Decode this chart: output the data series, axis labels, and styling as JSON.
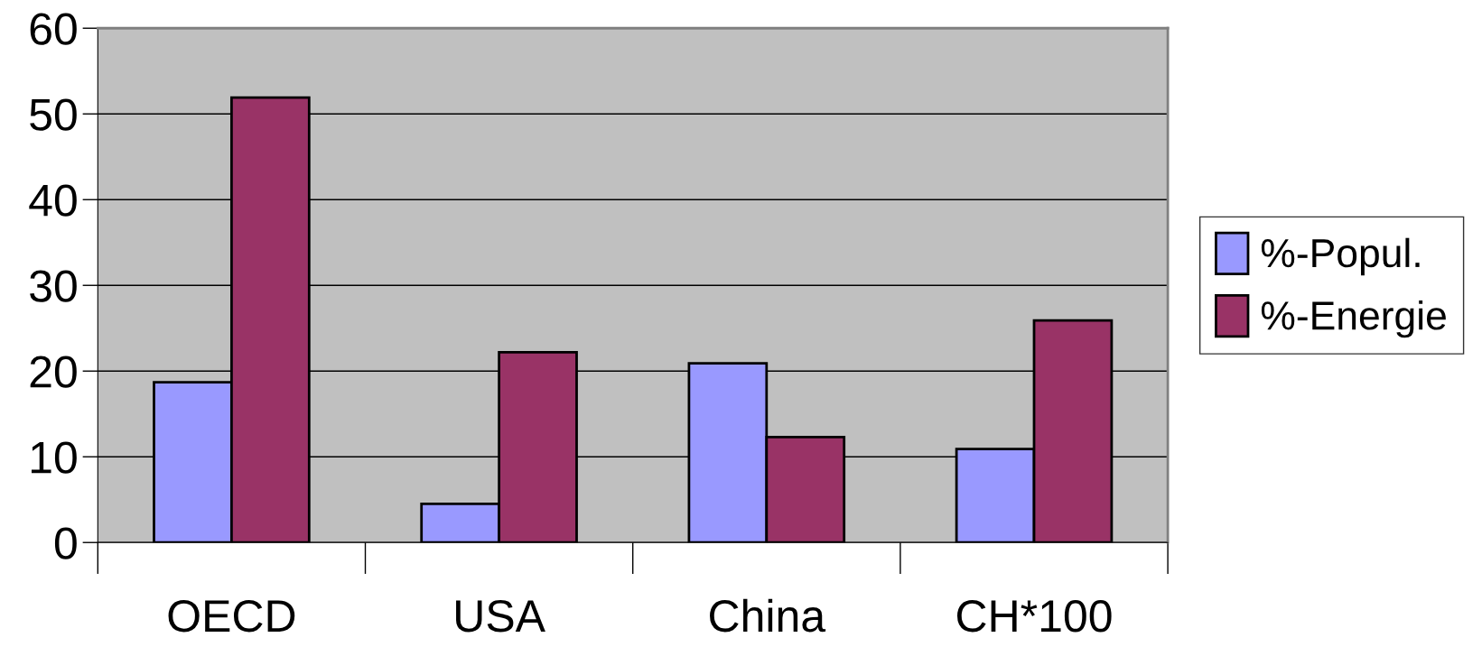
{
  "chart_data": {
    "type": "bar",
    "categories": [
      "OECD",
      "USA",
      "China",
      "CH*100"
    ],
    "series": [
      {
        "name": "%-Popul.",
        "color": "#9999ff",
        "values": [
          18.7,
          4.5,
          20.9,
          10.9
        ]
      },
      {
        "name": "%-Energie",
        "color": "#993366",
        "values": [
          51.9,
          22.2,
          12.3,
          25.9
        ]
      }
    ],
    "ylim": [
      0,
      60
    ],
    "yticks": [
      0,
      10,
      20,
      30,
      40,
      50,
      60
    ],
    "grid": "y",
    "legend": "right"
  }
}
